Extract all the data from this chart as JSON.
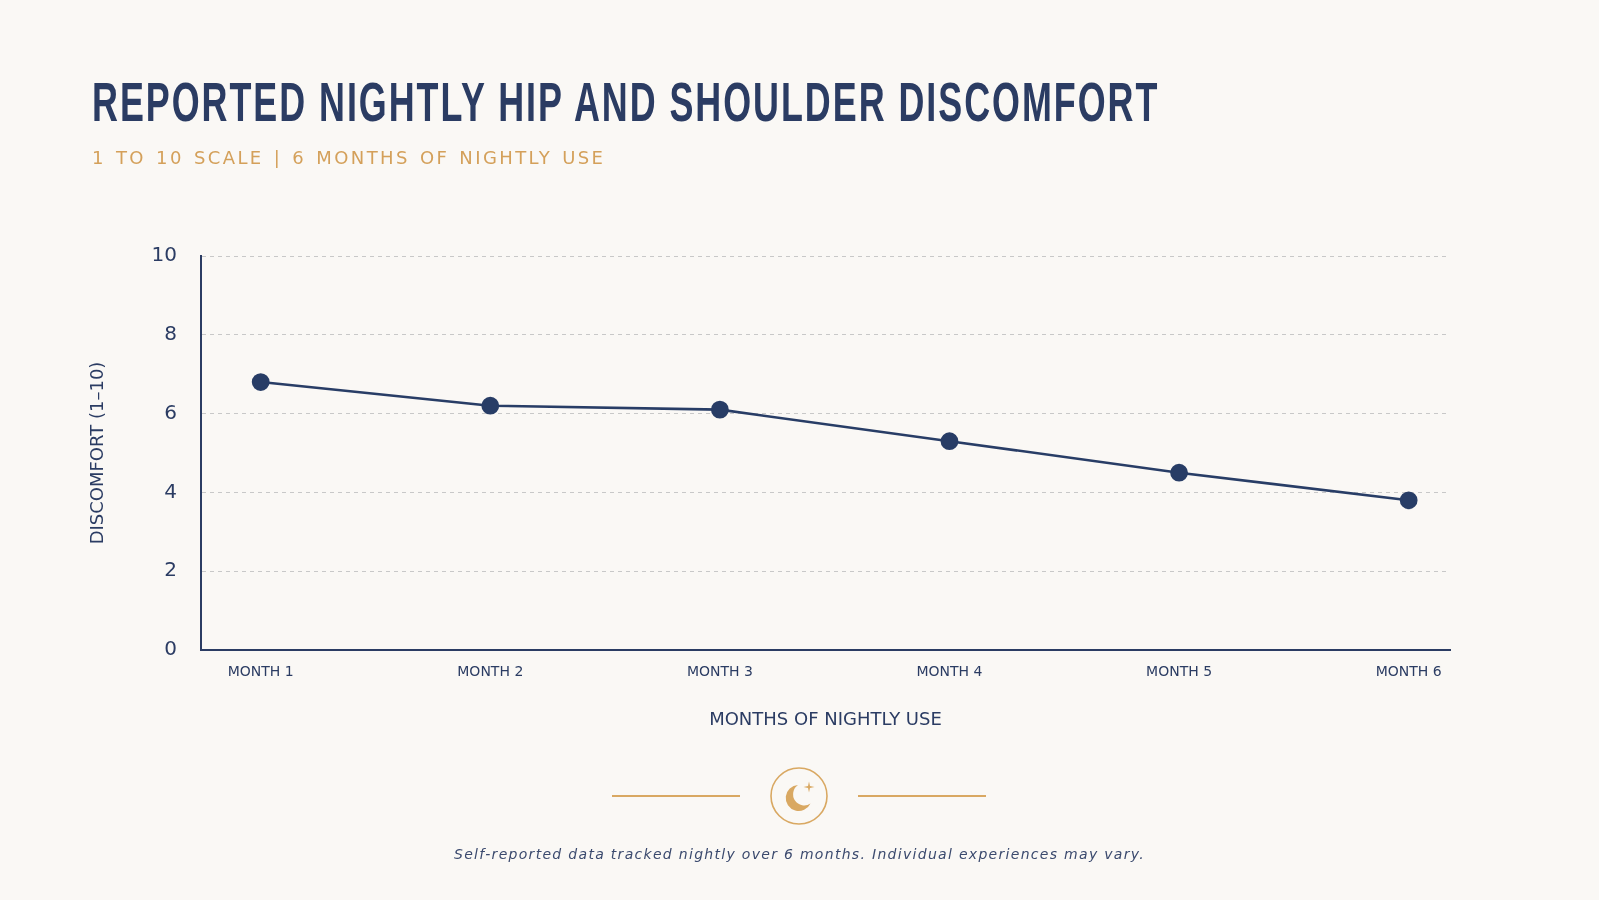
{
  "chart_data": {
    "type": "line",
    "title": "REPORTED NIGHTLY HIP AND SHOULDER DISCOMFORT",
    "subtitle": "1 TO 10 SCALE | 6 MONTHS OF NIGHTLY USE",
    "xlabel": "MONTHS OF NIGHTLY USE",
    "ylabel": "DISCOMFORT (1–10)",
    "categories": [
      "MONTH 1",
      "MONTH 2",
      "MONTH 3",
      "MONTH 4",
      "MONTH 5",
      "MONTH 6"
    ],
    "series": [
      {
        "color": "#283d66",
        "values": [
          6.8,
          6.2,
          6.1,
          5.3,
          4.5,
          3.8
        ]
      }
    ],
    "ylim": [
      0,
      10
    ],
    "yticks": [
      0,
      2,
      4,
      6,
      8,
      10
    ],
    "grid": "y",
    "marker": "circle",
    "line_style": "solid",
    "annotations": [
      "Self-reported data tracked nightly over 6 months. Individual experiences may vary."
    ]
  }
}
